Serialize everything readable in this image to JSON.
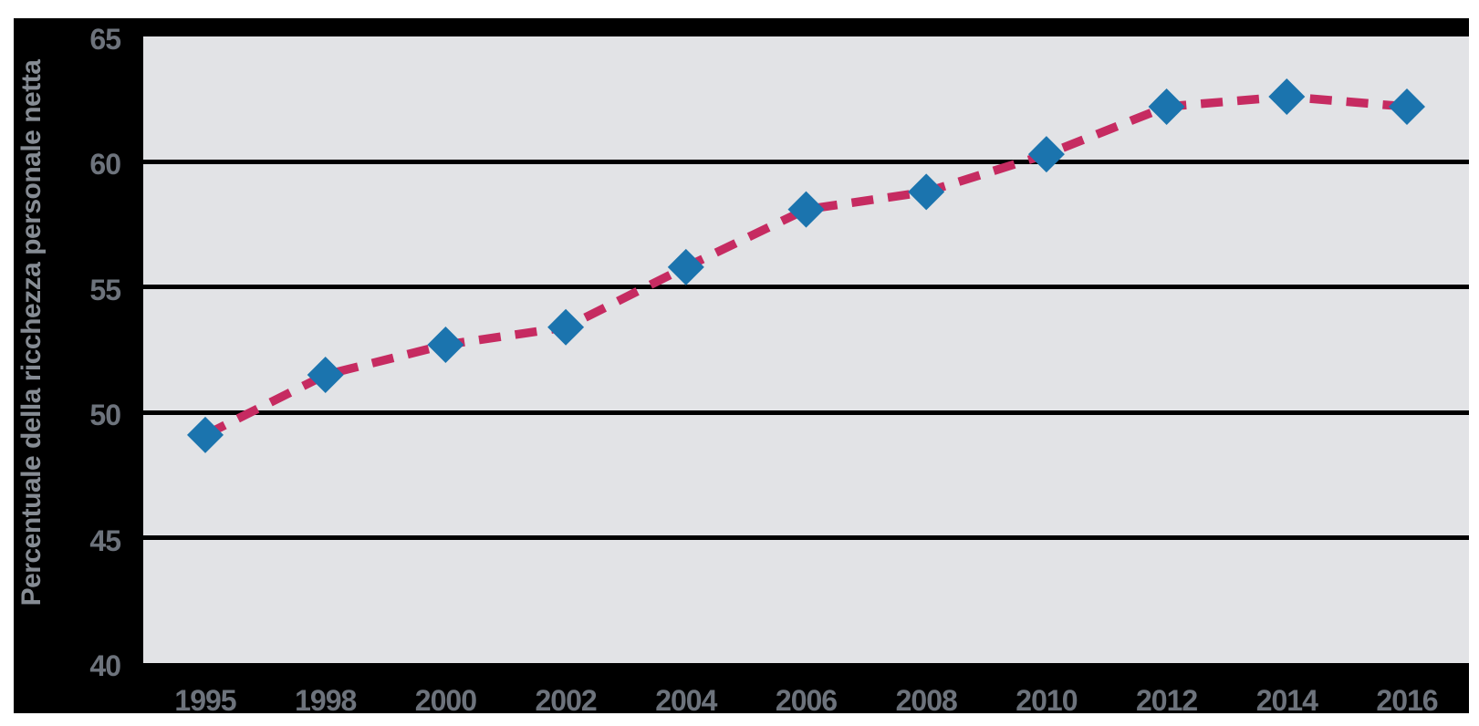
{
  "figure": {
    "y_axis_title": "Percentuale della ricchezza personale netta"
  },
  "chart_data": {
    "type": "line",
    "title": "",
    "xlabel": "",
    "ylabel": "Percentuale della ricchezza personale netta",
    "categories": [
      "1995",
      "1998",
      "2000",
      "2002",
      "2004",
      "2006",
      "2008",
      "2010",
      "2012",
      "2014",
      "2016"
    ],
    "values": [
      49.1,
      51.5,
      52.7,
      53.4,
      55.8,
      58.1,
      58.8,
      60.3,
      62.2,
      62.6,
      62.2
    ],
    "ylim": [
      40,
      65
    ],
    "yticks": [
      40,
      45,
      50,
      55,
      60,
      65
    ],
    "grid": "horizontal-black",
    "legend": "none",
    "line_style": "dashed",
    "marker": "diamond",
    "colors": {
      "line": "#c62b61",
      "marker": "#1b74ae",
      "plot_bg": "#e2e3e6",
      "figure_bg": "#000000",
      "page_bg": "#ffffff",
      "gridline": "#000000",
      "tick_text": "#6d737c",
      "axis_title_text": "#868c94"
    }
  }
}
